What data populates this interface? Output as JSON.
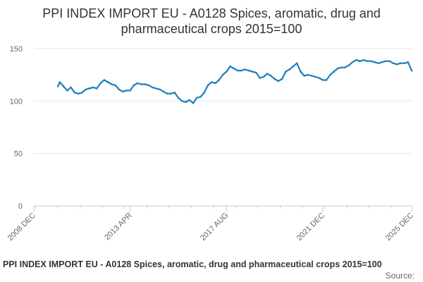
{
  "chart_data": {
    "type": "line",
    "title": "PPI INDEX IMPORT EU - A0128 Spices, aromatic, drug and pharmaceutical crops 2015=100",
    "title_lines": [
      "PPI INDEX IMPORT EU - A0128 Spices, aromatic, drug and",
      "pharmaceutical crops 2015=100"
    ],
    "xlabel": "",
    "ylabel": "",
    "x_tick_labels": [
      "2008 DEC",
      "2013 APR",
      "2017 AUG",
      "2021 DEC",
      "2025 DEC"
    ],
    "x_tick_dates": [
      "2008-12",
      "2013-04",
      "2017-08",
      "2021-12",
      "2025-12"
    ],
    "y_ticks": [
      0,
      50,
      100,
      150
    ],
    "ylim": [
      0,
      160
    ],
    "xlim": [
      "2008-12",
      "2025-12"
    ],
    "grid": true,
    "legend_position": "bottom",
    "series": [
      {
        "name": "PPI INDEX IMPORT EU - A0128 Spices, aromatic, drug and pharmaceutical crops 2015=100",
        "color": "#1f7fbf",
        "x": [
          "2010-01",
          "2010-02",
          "2010-04",
          "2010-06",
          "2010-08",
          "2010-10",
          "2010-12",
          "2011-02",
          "2011-04",
          "2011-06",
          "2011-08",
          "2011-10",
          "2011-12",
          "2012-02",
          "2012-04",
          "2012-06",
          "2012-08",
          "2012-10",
          "2012-12",
          "2013-02",
          "2013-04",
          "2013-06",
          "2013-08",
          "2013-10",
          "2013-12",
          "2014-02",
          "2014-04",
          "2014-06",
          "2014-08",
          "2014-10",
          "2014-12",
          "2015-02",
          "2015-04",
          "2015-06",
          "2015-08",
          "2015-10",
          "2015-12",
          "2016-02",
          "2016-04",
          "2016-06",
          "2016-08",
          "2016-10",
          "2016-12",
          "2017-02",
          "2017-04",
          "2017-06",
          "2017-08",
          "2017-10",
          "2017-12",
          "2018-02",
          "2018-04",
          "2018-06",
          "2018-08",
          "2018-10",
          "2018-12",
          "2019-02",
          "2019-04",
          "2019-06",
          "2019-08",
          "2019-10",
          "2019-12",
          "2020-02",
          "2020-04",
          "2020-06",
          "2020-08",
          "2020-10",
          "2020-12",
          "2021-02",
          "2021-04",
          "2021-06",
          "2021-08",
          "2021-10",
          "2021-12",
          "2022-02",
          "2022-04",
          "2022-06",
          "2022-08",
          "2022-10",
          "2022-12",
          "2023-02",
          "2023-04",
          "2023-06",
          "2023-08",
          "2023-10",
          "2023-12",
          "2024-02",
          "2024-04",
          "2024-06",
          "2024-08",
          "2024-10",
          "2024-12",
          "2025-02",
          "2025-04",
          "2025-06",
          "2025-08",
          "2025-10",
          "2025-12"
        ],
        "values": [
          114,
          118,
          114,
          110,
          113,
          108,
          107,
          108,
          111,
          112,
          113,
          112,
          117,
          120,
          118,
          116,
          115,
          111,
          109,
          110,
          110,
          115,
          117,
          116,
          116,
          115,
          113,
          112,
          111,
          109,
          107,
          107,
          108,
          103,
          100,
          99,
          101,
          98,
          103,
          104,
          108,
          115,
          118,
          117,
          120,
          125,
          128,
          133,
          131,
          129,
          129,
          130,
          129,
          128,
          127,
          122,
          123,
          126,
          124,
          121,
          119,
          121,
          128,
          130,
          133,
          136,
          128,
          124,
          125,
          124,
          123,
          122,
          120,
          120,
          125,
          128,
          131,
          132,
          132,
          134,
          137,
          139,
          138,
          139,
          138,
          138,
          137,
          136,
          137,
          138,
          138,
          136,
          135,
          136,
          136,
          137,
          129
        ]
      }
    ]
  },
  "legend": {
    "text": "PPI INDEX IMPORT EU - A0128 Spices, aromatic, drug and pharmaceutical crops 2015=100"
  },
  "source": {
    "label": "Source:"
  }
}
